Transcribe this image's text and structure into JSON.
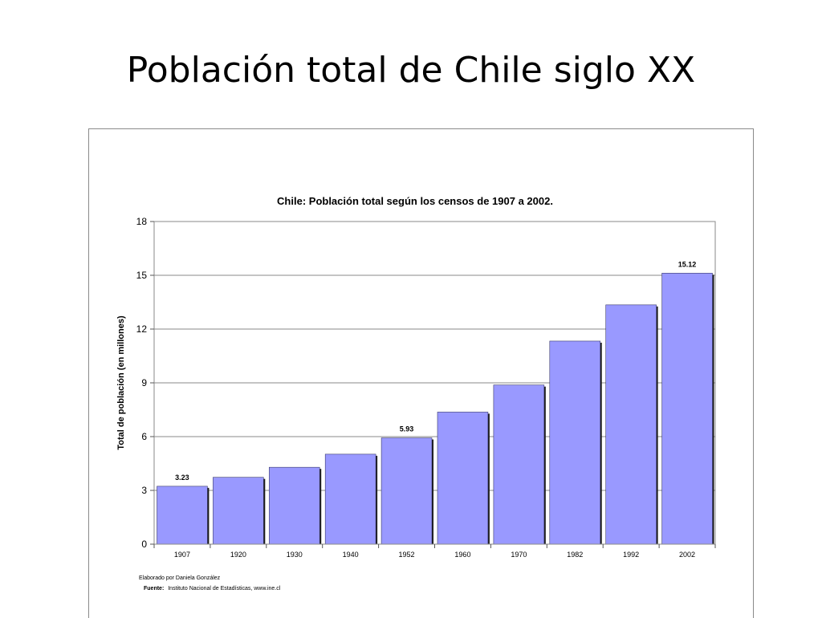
{
  "slide": {
    "title": "Población total de Chile siglo XX"
  },
  "chart_data": {
    "type": "bar",
    "title": "Chile: Población total según los censos de 1907 a 2002.",
    "xlabel": "",
    "ylabel": "Total de población (en millones)",
    "categories": [
      "1907",
      "1920",
      "1930",
      "1940",
      "1952",
      "1960",
      "1970",
      "1982",
      "1992",
      "2002"
    ],
    "values": [
      3.23,
      3.73,
      4.29,
      5.02,
      5.93,
      7.37,
      8.88,
      11.33,
      13.35,
      15.12
    ],
    "data_labels": [
      {
        "index": 0,
        "text": "3.23"
      },
      {
        "index": 4,
        "text": "5.93"
      },
      {
        "index": 9,
        "text": "15.12"
      }
    ],
    "ylim": [
      0,
      18
    ],
    "yticks": [
      "0",
      "3",
      "6",
      "9",
      "12",
      "15",
      "18"
    ],
    "grid": true,
    "legend": "none",
    "bar_color": "#9999ff",
    "notes": {
      "credit": "Elaborado por Daniela González",
      "source_label": "Fuente:",
      "source_text": "Instituto Nacional de Estadísticas, www.ine.cl"
    }
  }
}
